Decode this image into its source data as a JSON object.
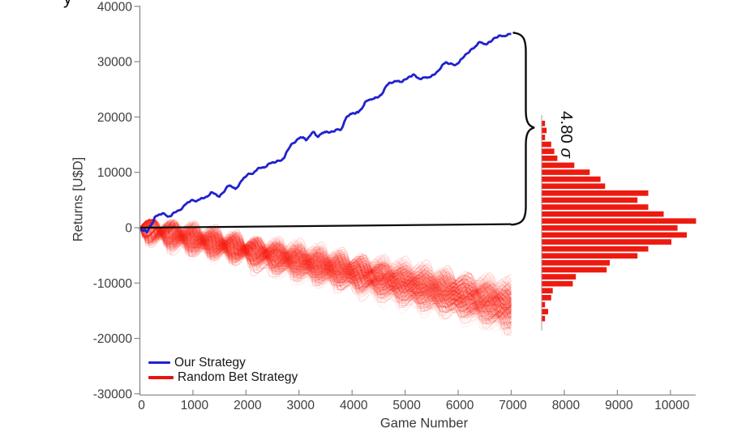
{
  "figure": {
    "cropped_text_fragment": "y",
    "y_axis_label": "Returns [U$D]",
    "x_axis_label": "Game Number",
    "annotation_sigma_value": "4.80",
    "annotation_sigma_symbol": "σ",
    "legend": [
      {
        "label": "Our Strategy",
        "color": "#2121ce"
      },
      {
        "label": "Random Bet Strategy",
        "color": "#e8140e"
      }
    ]
  },
  "chart_data": {
    "type": "line",
    "title": "",
    "xlabel": "Game Number",
    "ylabel": "Returns [U$D]",
    "xlim": [
      0,
      10000
    ],
    "ylim": [
      -30000,
      40000
    ],
    "x_ticks": [
      0,
      1000,
      2000,
      3000,
      4000,
      5000,
      6000,
      7000,
      8000,
      9000,
      10000
    ],
    "y_ticks": [
      40000,
      30000,
      20000,
      10000,
      0,
      -10000,
      -20000,
      -30000
    ],
    "grid": false,
    "legend_position": "bottom-left inside axes",
    "series": [
      {
        "name": "Our Strategy",
        "type": "line",
        "color": "#2121ce",
        "points": [
          [
            0,
            0
          ],
          [
            50,
            -500
          ],
          [
            130,
            -850
          ],
          [
            200,
            300
          ],
          [
            280,
            1900
          ],
          [
            430,
            2600
          ],
          [
            580,
            2050
          ],
          [
            730,
            3100
          ],
          [
            890,
            4500
          ],
          [
            1040,
            4800
          ],
          [
            1190,
            5300
          ],
          [
            1340,
            6400
          ],
          [
            1500,
            5600
          ],
          [
            1650,
            7500
          ],
          [
            1800,
            7000
          ],
          [
            1950,
            8900
          ],
          [
            2110,
            9700
          ],
          [
            2260,
            10800
          ],
          [
            2410,
            11400
          ],
          [
            2570,
            11900
          ],
          [
            2720,
            12600
          ],
          [
            2870,
            15200
          ],
          [
            3020,
            16300
          ],
          [
            3130,
            15800
          ],
          [
            3280,
            17300
          ],
          [
            3370,
            16500
          ],
          [
            3480,
            17300
          ],
          [
            3630,
            17400
          ],
          [
            3790,
            17700
          ],
          [
            3890,
            19900
          ],
          [
            4050,
            20600
          ],
          [
            4140,
            21100
          ],
          [
            4240,
            22600
          ],
          [
            4400,
            23300
          ],
          [
            4550,
            24000
          ],
          [
            4700,
            26200
          ],
          [
            4860,
            26500
          ],
          [
            5010,
            26800
          ],
          [
            5160,
            27700
          ],
          [
            5310,
            26900
          ],
          [
            5470,
            27200
          ],
          [
            5620,
            28300
          ],
          [
            5770,
            29900
          ],
          [
            5920,
            29400
          ],
          [
            6080,
            30600
          ],
          [
            6230,
            32100
          ],
          [
            6380,
            33400
          ],
          [
            6530,
            33100
          ],
          [
            6690,
            34300
          ],
          [
            6840,
            34600
          ],
          [
            7000,
            35000
          ]
        ]
      },
      {
        "name": "Random Bet Mean",
        "type": "line",
        "color": "#0d0d0d",
        "points": [
          [
            0,
            0
          ],
          [
            7000,
            650
          ]
        ]
      },
      {
        "name": "Random Bet Strategy",
        "type": "ensemble",
        "color": "#f8211a",
        "description": "many translucent random-walk return paths from game 0 to 7000",
        "games_end": 7000,
        "final_std_usd": 7200,
        "final_mean_usd": 650
      }
    ],
    "annotation": {
      "text": "4.80 σ",
      "sigma_gap": 4.8,
      "from_usd": 650,
      "to_usd": 35000,
      "at_game": 7000
    },
    "histogram": {
      "type": "histogram",
      "orientation": "horizontal",
      "position": "right of game 7000, distribution of random-bet final returns",
      "color": "#ed1a10",
      "bin_width_usd": 1250,
      "bin_centers_usd": [
        18800,
        17550,
        16300,
        15040,
        13780,
        12530,
        11270,
        10010,
        8750,
        7500,
        6240,
        4980,
        3720,
        2460,
        1200,
        -50,
        -1310,
        -2570,
        -3830,
        -5080,
        -6340,
        -7600,
        -8860,
        -10110,
        -11370,
        -12630,
        -13890,
        -15140,
        -16400
      ],
      "counts_rel": [
        0.02,
        0.03,
        0.02,
        0.06,
        0.08,
        0.1,
        0.21,
        0.31,
        0.38,
        0.41,
        0.69,
        0.62,
        0.69,
        0.79,
        1.0,
        0.88,
        0.94,
        0.84,
        0.69,
        0.62,
        0.44,
        0.42,
        0.22,
        0.2,
        0.07,
        0.06,
        0.02,
        0.04,
        0.02
      ]
    }
  }
}
